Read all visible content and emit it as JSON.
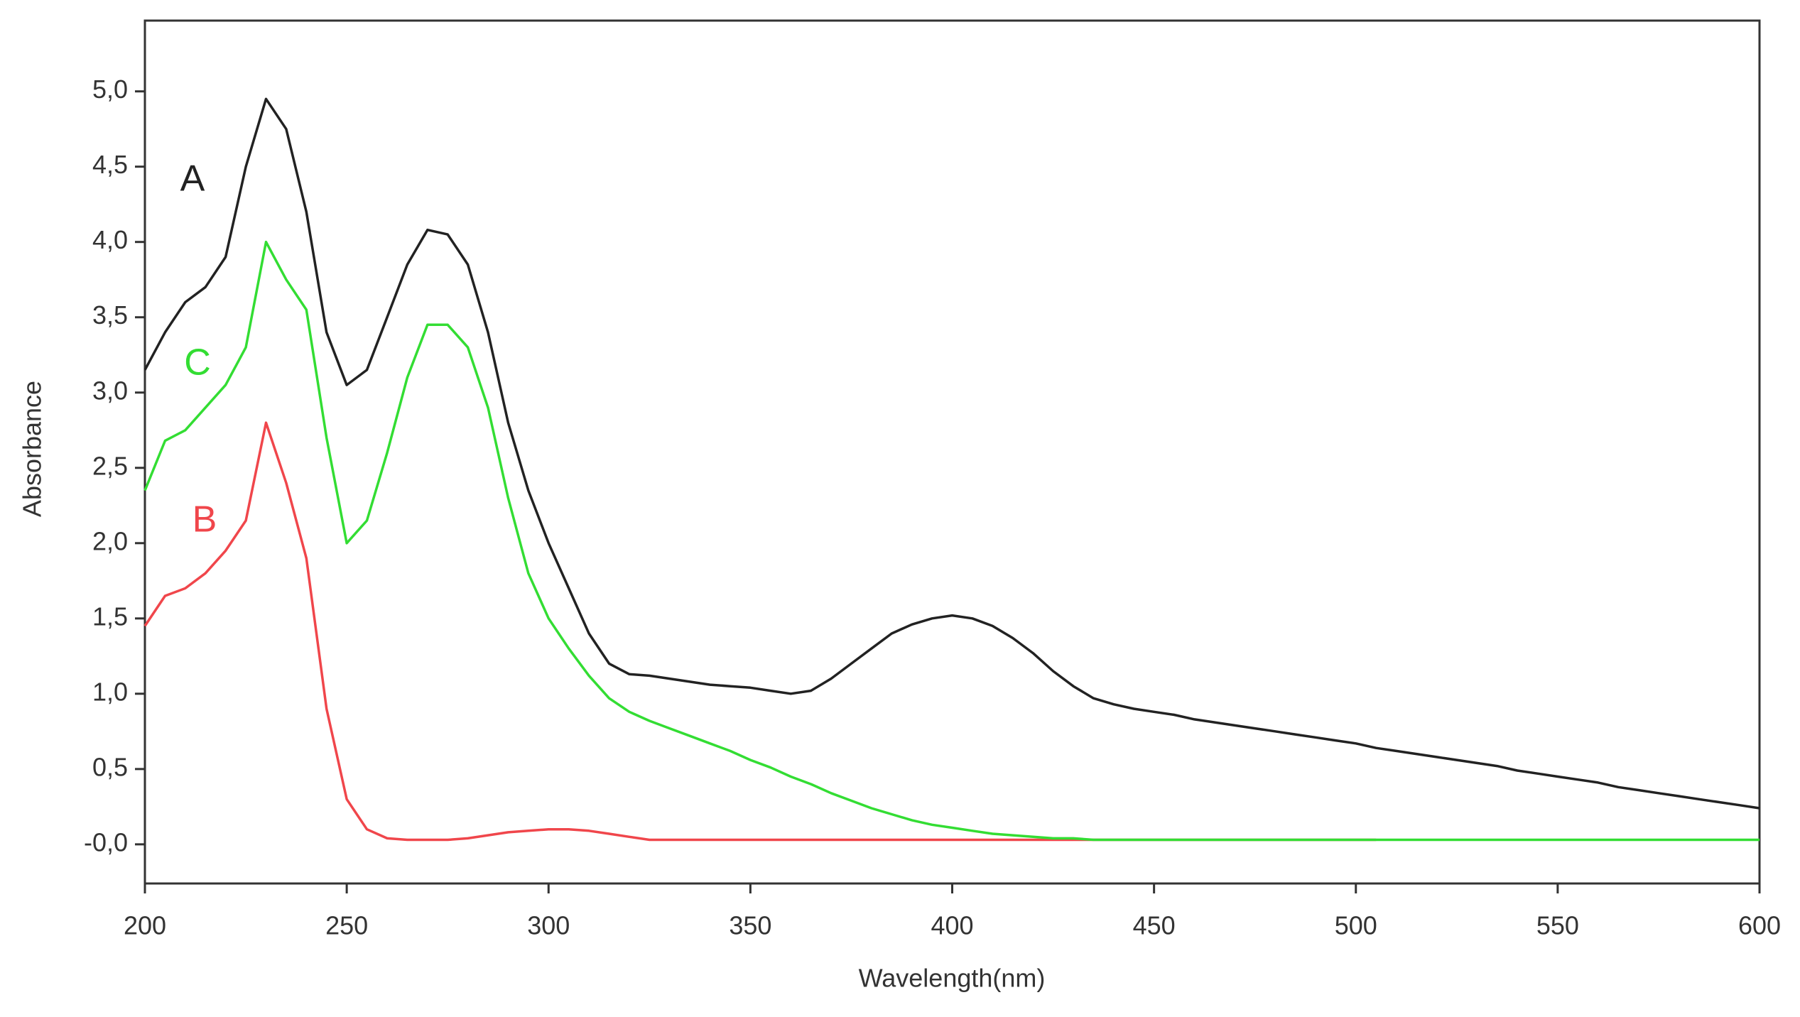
{
  "chart_data": {
    "type": "line",
    "x_label": "Wavelength(nm)",
    "y_label": "Absorbance",
    "xlim": [
      200,
      600
    ],
    "ylim": [
      -0.26,
      5.47
    ],
    "xticks": [
      200,
      250,
      300,
      350,
      400,
      450,
      500,
      550,
      600
    ],
    "yticks": [
      {
        "value": 0,
        "label": "-0,0"
      },
      {
        "value": 0.5,
        "label": "0,5"
      },
      {
        "value": 1,
        "label": "1,0"
      },
      {
        "value": 1.5,
        "label": "1,5"
      },
      {
        "value": 2,
        "label": "2,0"
      },
      {
        "value": 2.5,
        "label": "2,5"
      },
      {
        "value": 3,
        "label": "3,0"
      },
      {
        "value": 3.5,
        "label": "3,5"
      },
      {
        "value": 4,
        "label": "4,0"
      },
      {
        "value": 4.5,
        "label": "4,5"
      },
      {
        "value": 5,
        "label": "5,0"
      }
    ],
    "grid": false,
    "x": [
      200,
      205,
      210,
      215,
      220,
      225,
      230,
      235,
      240,
      245,
      250,
      255,
      260,
      265,
      270,
      275,
      280,
      285,
      290,
      295,
      300,
      305,
      310,
      315,
      320,
      325,
      330,
      335,
      340,
      345,
      350,
      355,
      360,
      365,
      370,
      375,
      380,
      385,
      390,
      395,
      400,
      405,
      410,
      415,
      420,
      425,
      430,
      435,
      440,
      445,
      450,
      455,
      460,
      465,
      470,
      475,
      480,
      485,
      490,
      495,
      500,
      505,
      510,
      515,
      520,
      525,
      530,
      535,
      540,
      545,
      550,
      555,
      560,
      565,
      570,
      575,
      580,
      585,
      590,
      595,
      600
    ],
    "series": [
      {
        "name": "A",
        "color": "#222222",
        "values": [
          3.15,
          3.4,
          3.6,
          3.7,
          3.9,
          4.5,
          4.95,
          4.75,
          4.2,
          3.4,
          3.05,
          3.15,
          3.5,
          3.85,
          4.08,
          4.05,
          3.85,
          3.4,
          2.8,
          2.35,
          2.0,
          1.7,
          1.4,
          1.2,
          1.13,
          1.12,
          1.1,
          1.08,
          1.06,
          1.05,
          1.04,
          1.02,
          1.0,
          1.02,
          1.1,
          1.2,
          1.3,
          1.4,
          1.46,
          1.5,
          1.52,
          1.5,
          1.45,
          1.37,
          1.27,
          1.15,
          1.05,
          0.97,
          0.93,
          0.9,
          0.88,
          0.86,
          0.83,
          0.81,
          0.79,
          0.77,
          0.75,
          0.73,
          0.71,
          0.69,
          0.67,
          0.64,
          0.62,
          0.6,
          0.58,
          0.56,
          0.54,
          0.52,
          0.49,
          0.47,
          0.45,
          0.43,
          0.41,
          0.38,
          0.36,
          0.34,
          0.32,
          0.3,
          0.28,
          0.26,
          0.24
        ]
      },
      {
        "name": "B",
        "color": "#f0464b",
        "values": [
          1.45,
          1.65,
          1.7,
          1.8,
          1.95,
          2.15,
          2.8,
          2.4,
          1.9,
          0.9,
          0.3,
          0.1,
          0.04,
          0.03,
          0.03,
          0.03,
          0.04,
          0.06,
          0.08,
          0.09,
          0.1,
          0.1,
          0.09,
          0.07,
          0.05,
          0.03,
          0.03,
          0.03,
          0.03,
          0.03,
          0.03,
          0.03,
          0.03,
          0.03,
          0.03,
          0.03,
          0.03,
          0.03,
          0.03,
          0.03,
          0.03,
          0.03,
          0.03,
          0.03,
          0.03,
          0.03,
          0.03,
          0.03,
          0.03,
          0.03,
          0.03,
          0.03,
          0.03,
          0.03,
          0.03,
          0.03,
          0.03,
          0.03,
          0.03,
          0.03,
          0.03,
          0.03,
          null,
          null,
          null,
          null,
          null,
          null,
          null,
          null,
          null,
          null,
          null,
          null,
          null,
          null,
          null,
          null,
          null,
          null,
          null
        ]
      },
      {
        "name": "C",
        "color": "#33dd33",
        "values": [
          2.35,
          2.68,
          2.75,
          2.9,
          3.05,
          3.3,
          4.0,
          3.75,
          3.55,
          2.7,
          2.0,
          2.15,
          2.6,
          3.1,
          3.45,
          3.45,
          3.3,
          2.9,
          2.3,
          1.8,
          1.5,
          1.3,
          1.12,
          0.97,
          0.88,
          0.82,
          0.77,
          0.72,
          0.67,
          0.62,
          0.56,
          0.51,
          0.45,
          0.4,
          0.34,
          0.29,
          0.24,
          0.2,
          0.16,
          0.13,
          0.11,
          0.09,
          0.07,
          0.06,
          0.05,
          0.04,
          0.04,
          0.03,
          0.03,
          0.03,
          0.03,
          0.03,
          0.03,
          0.03,
          0.03,
          0.03,
          0.03,
          0.03,
          0.03,
          0.03,
          0.03,
          0.03,
          0.03,
          0.03,
          0.03,
          0.03,
          0.03,
          0.03,
          0.03,
          0.03,
          0.03,
          0.03,
          0.03,
          0.03,
          0.03,
          0.03,
          0.03,
          0.03,
          0.03,
          0.03,
          0.03
        ]
      }
    ]
  }
}
